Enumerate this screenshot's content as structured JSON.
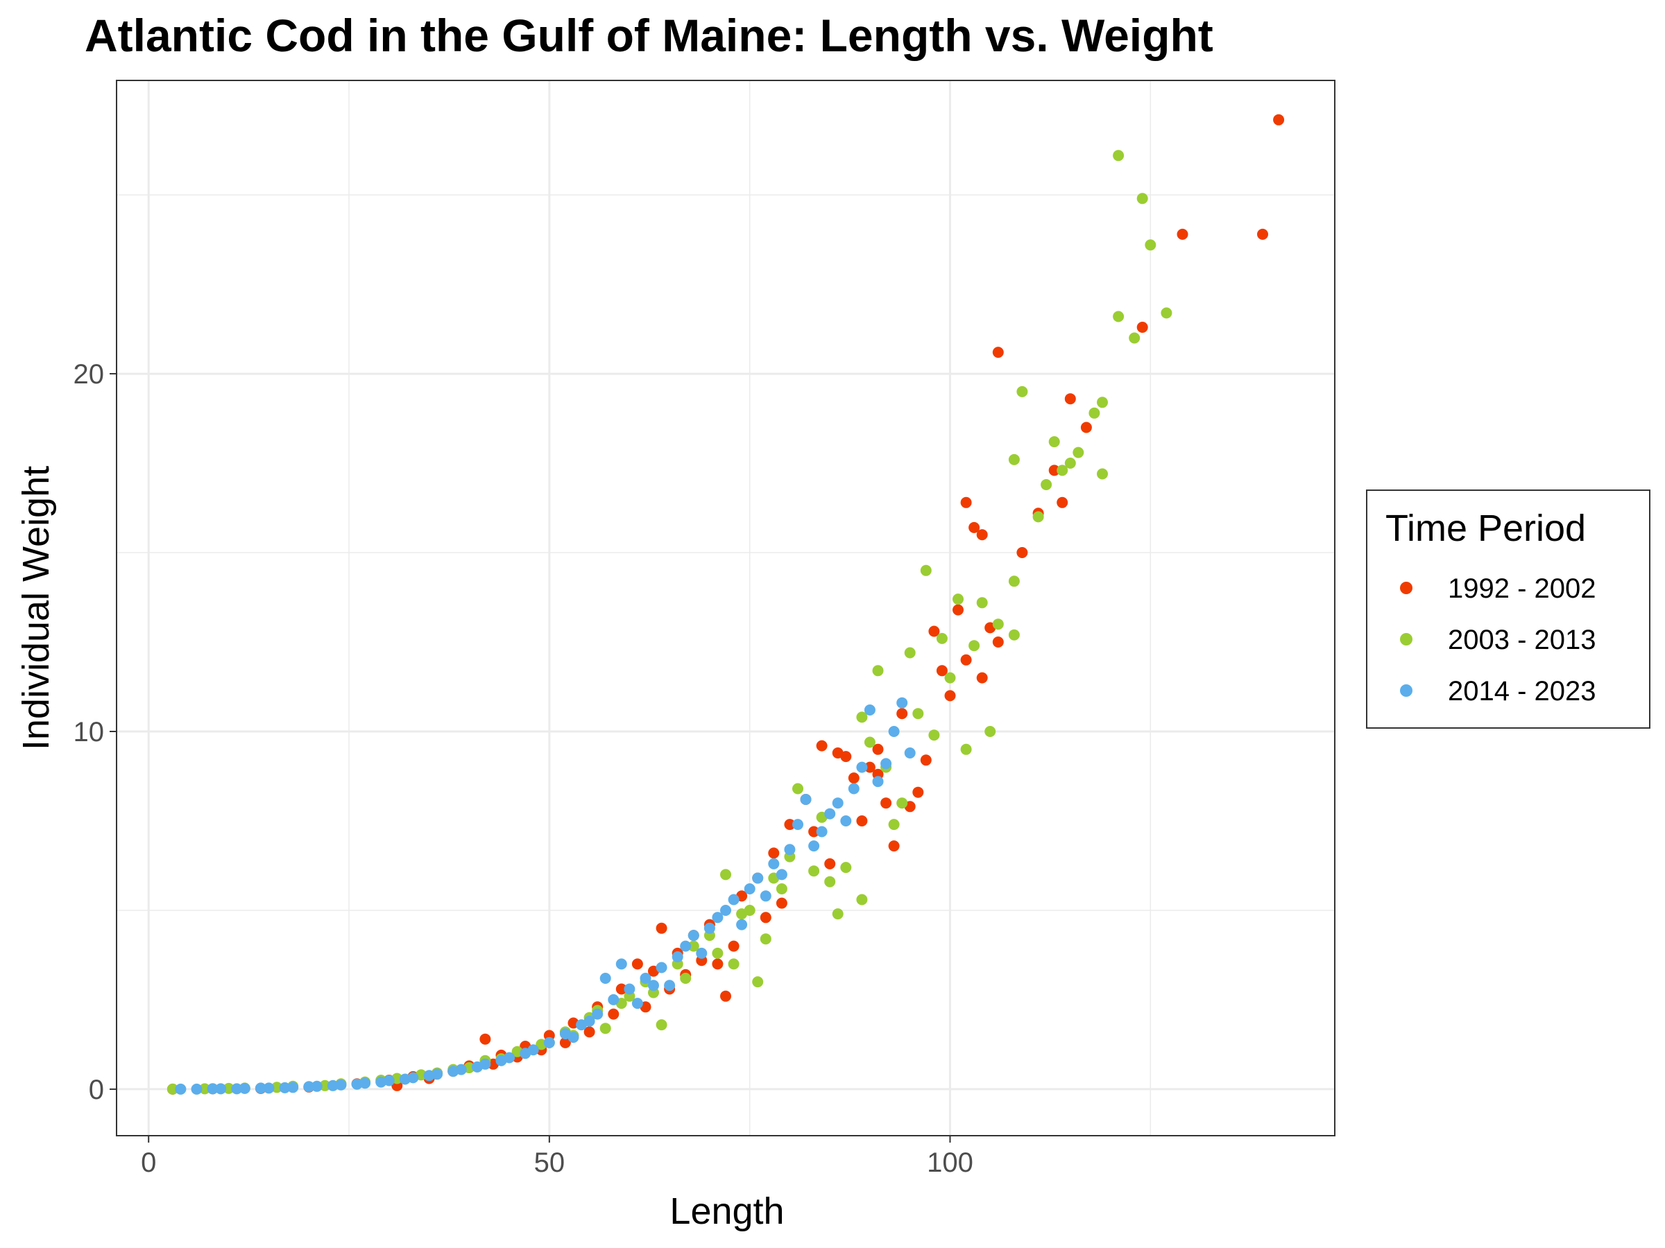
{
  "chart_data": {
    "type": "scatter",
    "title": "Atlantic Cod in the Gulf of Maine: Length vs. Weight",
    "xlabel": "Length",
    "ylabel": "Individual Weight",
    "xlim": [
      -4,
      148
    ],
    "ylim": [
      -1.3,
      28.2
    ],
    "x_ticks": [
      0,
      50,
      100
    ],
    "y_ticks": [
      0,
      10,
      20
    ],
    "x_minor_ticks": [
      25,
      75,
      125
    ],
    "y_minor_ticks": [
      5,
      15,
      25
    ],
    "grid": true,
    "legend": {
      "title": "Time Period",
      "placement": "right"
    },
    "series": [
      {
        "name": "1992 - 2002",
        "color": "#F03B00",
        "points": [
          [
            3,
            0.0
          ],
          [
            8,
            0.01
          ],
          [
            14,
            0.02
          ],
          [
            20,
            0.06
          ],
          [
            26,
            0.15
          ],
          [
            30,
            0.25
          ],
          [
            33,
            0.35
          ],
          [
            36,
            0.45
          ],
          [
            40,
            0.65
          ],
          [
            42,
            1.4
          ],
          [
            44,
            0.95
          ],
          [
            47,
            1.2
          ],
          [
            50,
            1.5
          ],
          [
            53,
            1.85
          ],
          [
            56,
            2.3
          ],
          [
            59,
            2.8
          ],
          [
            61,
            3.5
          ],
          [
            63,
            3.3
          ],
          [
            64,
            4.5
          ],
          [
            66,
            3.8
          ],
          [
            68,
            4.3
          ],
          [
            70,
            4.6
          ],
          [
            72,
            2.6
          ],
          [
            74,
            5.4
          ],
          [
            76,
            5.9
          ],
          [
            78,
            6.6
          ],
          [
            80,
            7.4
          ],
          [
            82,
            8.1
          ],
          [
            84,
            9.6
          ],
          [
            86,
            9.4
          ],
          [
            87,
            9.3
          ],
          [
            88,
            8.7
          ],
          [
            90,
            9.0
          ],
          [
            91,
            9.5
          ],
          [
            92,
            8.0
          ],
          [
            93,
            6.8
          ],
          [
            94,
            10.5
          ],
          [
            95,
            7.9
          ],
          [
            96,
            8.3
          ],
          [
            98,
            12.8
          ],
          [
            100,
            11.0
          ],
          [
            101,
            13.4
          ],
          [
            102,
            12.0
          ],
          [
            103,
            15.7
          ],
          [
            104,
            15.5
          ],
          [
            105,
            12.9
          ],
          [
            106,
            12.5
          ],
          [
            106,
            20.6
          ],
          [
            109,
            15.0
          ],
          [
            111,
            16.1
          ],
          [
            113,
            17.3
          ],
          [
            114,
            16.4
          ],
          [
            115,
            19.3
          ],
          [
            117,
            18.5
          ],
          [
            102,
            16.4
          ],
          [
            104,
            11.5
          ],
          [
            97,
            9.2
          ],
          [
            99,
            11.7
          ],
          [
            91,
            8.8
          ],
          [
            89,
            7.5
          ],
          [
            85,
            6.3
          ],
          [
            83,
            7.2
          ],
          [
            79,
            5.2
          ],
          [
            77,
            4.8
          ],
          [
            73,
            4.0
          ],
          [
            71,
            3.5
          ],
          [
            69,
            3.6
          ],
          [
            67,
            3.2
          ],
          [
            65,
            2.8
          ],
          [
            62,
            2.3
          ],
          [
            58,
            2.1
          ],
          [
            55,
            1.6
          ],
          [
            52,
            1.3
          ],
          [
            49,
            1.1
          ],
          [
            46,
            0.9
          ],
          [
            43,
            0.7
          ],
          [
            38,
            0.5
          ],
          [
            35,
            0.3
          ],
          [
            31,
            0.1
          ],
          [
            124,
            21.3
          ],
          [
            129,
            23.9
          ],
          [
            139,
            23.9
          ],
          [
            141,
            27.1
          ]
        ]
      },
      {
        "name": "2003 - 2013",
        "color": "#9ACD32",
        "points": [
          [
            3,
            0.0
          ],
          [
            7,
            0.01
          ],
          [
            12,
            0.03
          ],
          [
            18,
            0.08
          ],
          [
            24,
            0.15
          ],
          [
            29,
            0.25
          ],
          [
            34,
            0.4
          ],
          [
            38,
            0.55
          ],
          [
            42,
            0.8
          ],
          [
            46,
            1.05
          ],
          [
            49,
            1.25
          ],
          [
            52,
            1.6
          ],
          [
            55,
            2.0
          ],
          [
            57,
            1.7
          ],
          [
            60,
            2.6
          ],
          [
            62,
            3.0
          ],
          [
            64,
            1.8
          ],
          [
            66,
            3.5
          ],
          [
            68,
            4.0
          ],
          [
            70,
            4.3
          ],
          [
            72,
            6.0
          ],
          [
            73,
            3.5
          ],
          [
            75,
            5.0
          ],
          [
            76,
            3.0
          ],
          [
            77,
            4.2
          ],
          [
            79,
            5.6
          ],
          [
            80,
            6.5
          ],
          [
            81,
            8.4
          ],
          [
            83,
            6.1
          ],
          [
            85,
            5.8
          ],
          [
            86,
            4.9
          ],
          [
            87,
            6.2
          ],
          [
            89,
            5.3
          ],
          [
            89,
            10.4
          ],
          [
            90,
            9.7
          ],
          [
            91,
            11.7
          ],
          [
            92,
            9.0
          ],
          [
            93,
            7.4
          ],
          [
            94,
            8.0
          ],
          [
            95,
            12.2
          ],
          [
            96,
            10.5
          ],
          [
            97,
            14.5
          ],
          [
            98,
            9.9
          ],
          [
            99,
            12.6
          ],
          [
            100,
            11.5
          ],
          [
            101,
            13.7
          ],
          [
            102,
            9.5
          ],
          [
            103,
            12.4
          ],
          [
            104,
            13.6
          ],
          [
            105,
            10.0
          ],
          [
            106,
            13.0
          ],
          [
            108,
            12.7
          ],
          [
            108,
            14.2
          ],
          [
            108,
            17.6
          ],
          [
            109,
            19.5
          ],
          [
            111,
            16.0
          ],
          [
            112,
            16.9
          ],
          [
            113,
            18.1
          ],
          [
            114,
            17.3
          ],
          [
            115,
            17.5
          ],
          [
            116,
            17.8
          ],
          [
            118,
            18.9
          ],
          [
            119,
            19.2
          ],
          [
            119,
            17.2
          ],
          [
            121,
            21.6
          ],
          [
            121,
            26.1
          ],
          [
            123,
            21.0
          ],
          [
            124,
            24.9
          ],
          [
            125,
            23.6
          ],
          [
            127,
            21.7
          ],
          [
            84,
            7.6
          ],
          [
            78,
            5.9
          ],
          [
            74,
            4.9
          ],
          [
            71,
            3.8
          ],
          [
            67,
            3.1
          ],
          [
            63,
            2.7
          ],
          [
            59,
            2.4
          ],
          [
            56,
            2.2
          ],
          [
            53,
            1.5
          ],
          [
            50,
            1.3
          ],
          [
            44,
            0.85
          ],
          [
            40,
            0.6
          ],
          [
            36,
            0.45
          ],
          [
            31,
            0.3
          ],
          [
            27,
            0.2
          ],
          [
            22,
            0.1
          ],
          [
            16,
            0.05
          ],
          [
            10,
            0.02
          ]
        ]
      },
      {
        "name": "2014 - 2023",
        "color": "#5BAEEB",
        "points": [
          [
            4,
            0.0
          ],
          [
            6,
            0.0
          ],
          [
            9,
            0.01
          ],
          [
            12,
            0.02
          ],
          [
            15,
            0.03
          ],
          [
            18,
            0.05
          ],
          [
            21,
            0.08
          ],
          [
            24,
            0.12
          ],
          [
            27,
            0.17
          ],
          [
            30,
            0.24
          ],
          [
            33,
            0.32
          ],
          [
            36,
            0.42
          ],
          [
            39,
            0.55
          ],
          [
            42,
            0.7
          ],
          [
            45,
            0.88
          ],
          [
            48,
            1.1
          ],
          [
            50,
            1.3
          ],
          [
            52,
            1.55
          ],
          [
            54,
            1.8
          ],
          [
            56,
            2.1
          ],
          [
            57,
            3.1
          ],
          [
            58,
            2.5
          ],
          [
            59,
            3.5
          ],
          [
            60,
            2.8
          ],
          [
            62,
            3.1
          ],
          [
            64,
            3.4
          ],
          [
            65,
            2.9
          ],
          [
            66,
            3.7
          ],
          [
            67,
            4.0
          ],
          [
            68,
            4.3
          ],
          [
            69,
            3.8
          ],
          [
            70,
            4.5
          ],
          [
            71,
            4.8
          ],
          [
            72,
            5.0
          ],
          [
            73,
            5.3
          ],
          [
            74,
            4.6
          ],
          [
            75,
            5.6
          ],
          [
            76,
            5.9
          ],
          [
            77,
            5.4
          ],
          [
            78,
            6.3
          ],
          [
            79,
            6.0
          ],
          [
            80,
            6.7
          ],
          [
            81,
            7.4
          ],
          [
            82,
            8.1
          ],
          [
            83,
            6.8
          ],
          [
            84,
            7.2
          ],
          [
            85,
            7.7
          ],
          [
            86,
            8.0
          ],
          [
            87,
            7.5
          ],
          [
            88,
            8.4
          ],
          [
            89,
            9.0
          ],
          [
            90,
            10.6
          ],
          [
            91,
            8.6
          ],
          [
            92,
            9.1
          ],
          [
            93,
            10.0
          ],
          [
            94,
            10.8
          ],
          [
            95,
            9.4
          ],
          [
            61,
            2.4
          ],
          [
            63,
            2.9
          ],
          [
            53,
            1.45
          ],
          [
            55,
            1.9
          ],
          [
            47,
            1.0
          ],
          [
            44,
            0.8
          ],
          [
            41,
            0.62
          ],
          [
            38,
            0.5
          ],
          [
            35,
            0.38
          ],
          [
            32,
            0.28
          ],
          [
            29,
            0.2
          ],
          [
            26,
            0.14
          ],
          [
            23,
            0.1
          ],
          [
            20,
            0.07
          ],
          [
            17,
            0.04
          ],
          [
            14,
            0.03
          ],
          [
            11,
            0.01
          ],
          [
            8,
            0.01
          ]
        ]
      }
    ]
  }
}
